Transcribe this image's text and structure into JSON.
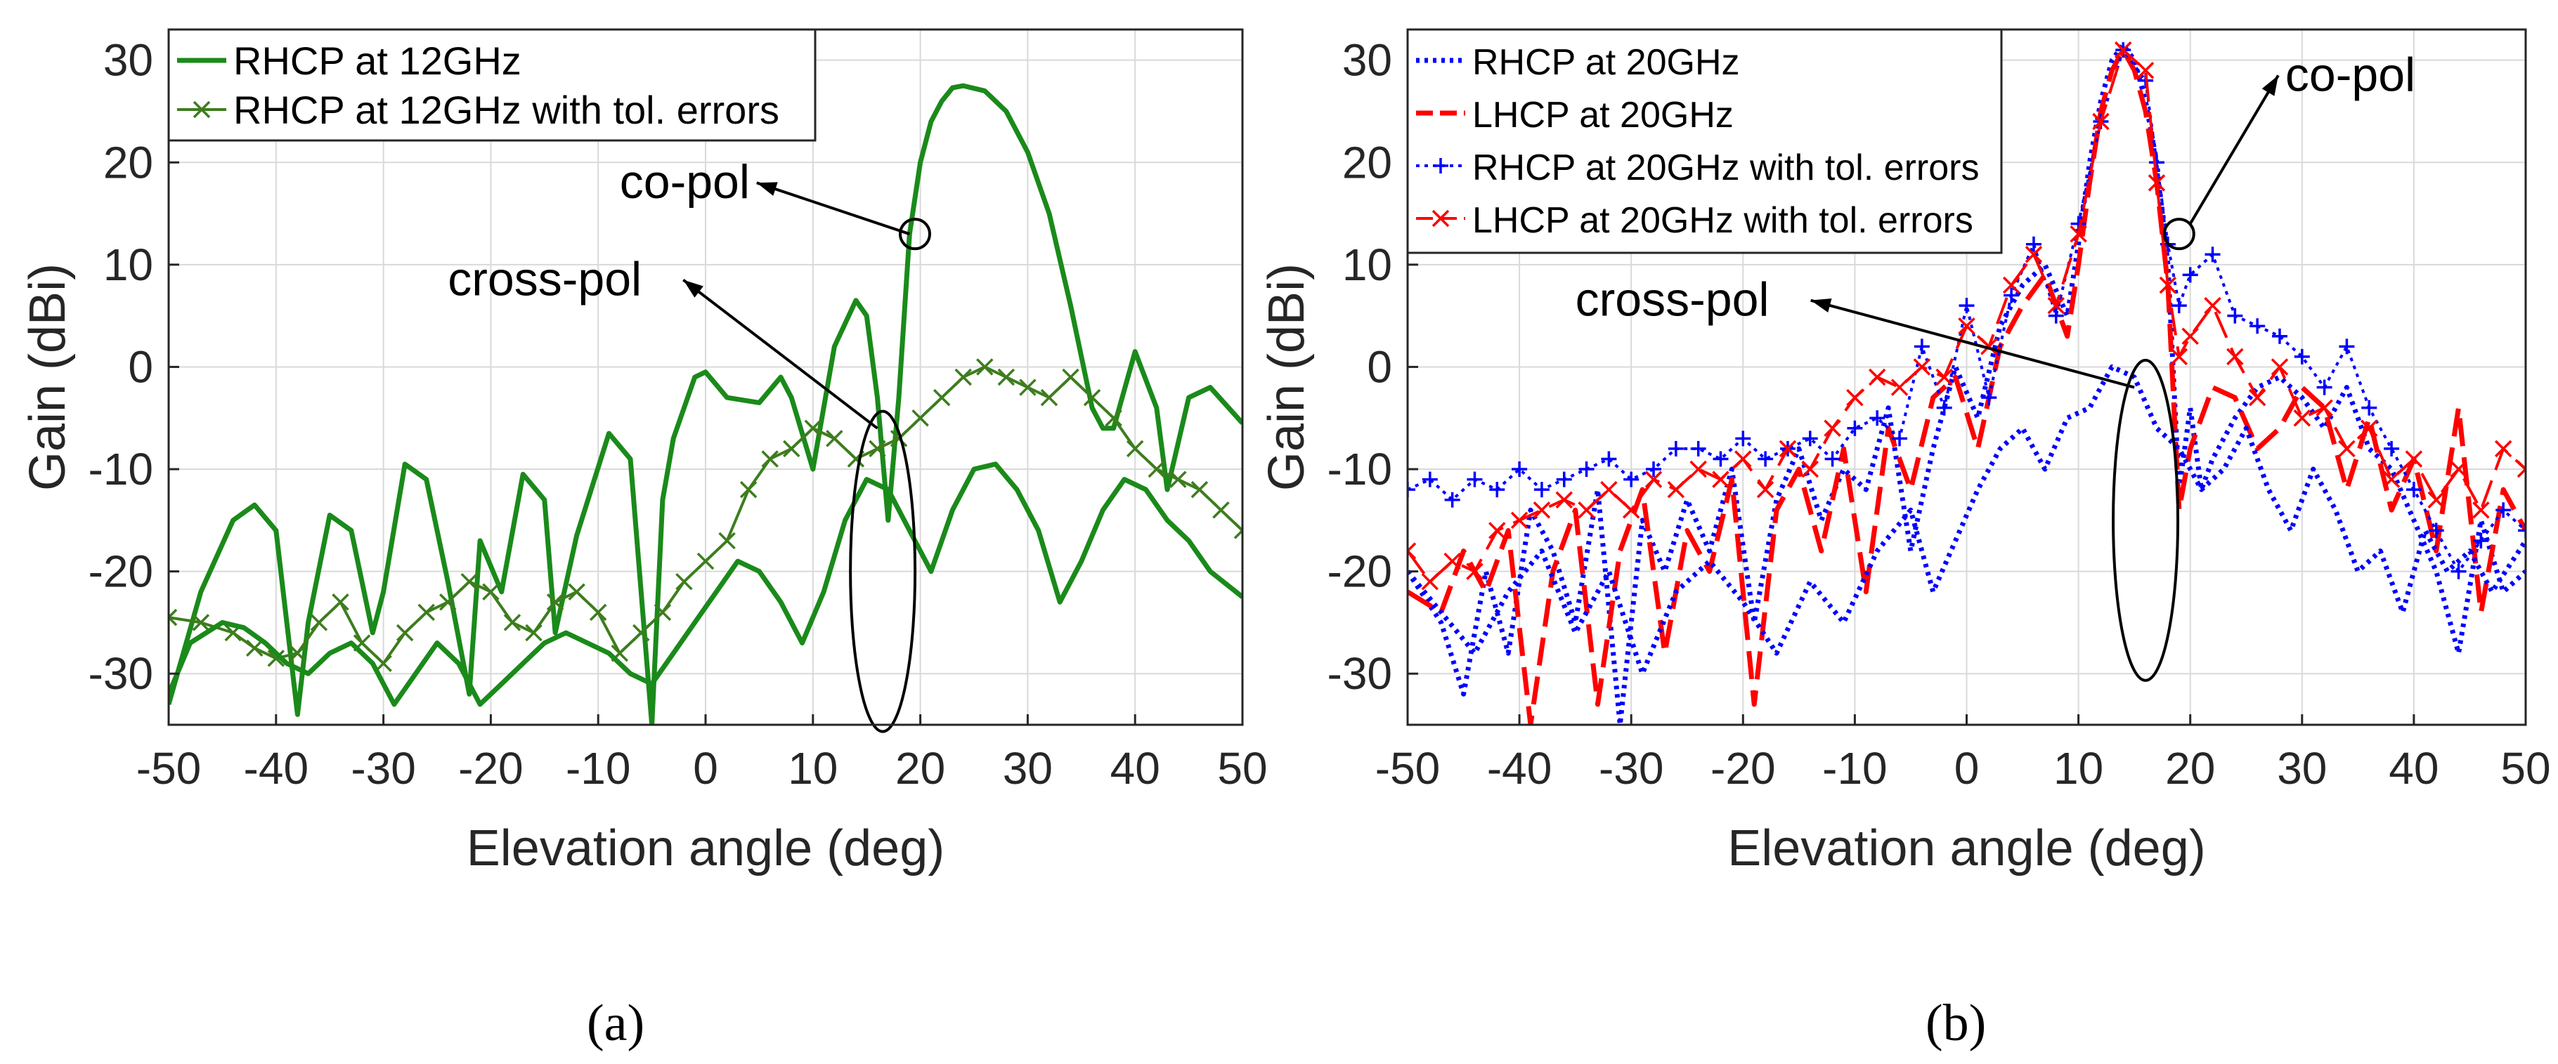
{
  "colors": {
    "green": "#1a8a1a",
    "green_markers": "#3d7d1d",
    "blue": "#0000ff",
    "red": "#ff0000",
    "grid": "#d9d9d9",
    "axis": "#262626"
  },
  "panel_labels": [
    "(a)",
    "(b)"
  ],
  "chart_data": [
    {
      "type": "line",
      "panel": "(a)",
      "xlabel": "Elevation angle (deg)",
      "ylabel": "Gain (dBi)",
      "xlim": [
        -50,
        50
      ],
      "ylim": [
        -35,
        33
      ],
      "xticks": [
        -50,
        -40,
        -30,
        -20,
        -10,
        0,
        10,
        20,
        30,
        40,
        50
      ],
      "yticks": [
        -30,
        -20,
        -10,
        0,
        10,
        20,
        30
      ],
      "grid": true,
      "legend": "top-left",
      "annotations": [
        {
          "text": "co-pol",
          "text_at": [
            -8,
            16.5
          ],
          "arrow_to": [
            19,
            13
          ],
          "marker": "circle",
          "marker_at": [
            19.5,
            13
          ]
        },
        {
          "text": "cross-pol",
          "text_at": [
            -24,
            7
          ],
          "arrow_to": [
            16,
            -6
          ],
          "marker": "ellipse",
          "marker_at": [
            16.5,
            -20
          ]
        }
      ],
      "series": [
        {
          "name": "RHCP at 12GHz",
          "style": "solid",
          "marker": "none",
          "color": "#1a8a1a",
          "x": [
            -50,
            -47,
            -44,
            -42,
            -40,
            -38,
            -37,
            -35,
            -33,
            -31,
            -30,
            -28,
            -26,
            -24,
            -22,
            -21,
            -19,
            -17,
            -15,
            -14,
            -12,
            -9,
            -7,
            -5,
            -4,
            -3,
            -1,
            0,
            2,
            5,
            7,
            8,
            10,
            12,
            14,
            15,
            16,
            17,
            18,
            19,
            20,
            21,
            22,
            23,
            24,
            26,
            28,
            30,
            32,
            34,
            36,
            37,
            38,
            40,
            42,
            43,
            45,
            47,
            50
          ],
          "y": [
            -33,
            -22,
            -15,
            -13.5,
            -16,
            -34,
            -25,
            -14.5,
            -16,
            -26,
            -22,
            -9.5,
            -11,
            -21,
            -32,
            -17,
            -22,
            -10.5,
            -13,
            -26,
            -16.5,
            -6.5,
            -9,
            -35,
            -13,
            -7,
            -1,
            -0.5,
            -3,
            -3.5,
            -1,
            -3,
            -10,
            2,
            6.5,
            5,
            -3,
            -15,
            -3,
            13,
            20,
            24,
            26,
            27.3,
            27.5,
            27,
            25,
            21,
            15,
            6,
            -4,
            -6,
            -6,
            1.5,
            -4,
            -12,
            -3,
            -2,
            -5.5
          ]
        },
        {
          "name": "RHCP at 12GHz with tol. errors",
          "style": "solid",
          "marker": "x",
          "color": "#3d7d1d",
          "x": [
            -50,
            -47,
            -44,
            -42,
            -40,
            -38,
            -36,
            -34,
            -32,
            -30,
            -28,
            -26,
            -24,
            -22,
            -20,
            -18,
            -16,
            -14,
            -12,
            -10,
            -8,
            -6,
            -4,
            -2,
            0,
            2,
            4,
            6,
            8,
            10,
            12,
            14,
            16,
            18,
            20,
            22,
            24,
            26,
            28,
            30,
            32,
            34,
            36,
            38,
            40,
            42,
            44,
            46,
            48,
            50
          ],
          "y": [
            -24.5,
            -25,
            -26,
            -27.5,
            -28.5,
            -28,
            -25,
            -23,
            -27,
            -29,
            -26,
            -24,
            -23,
            -21,
            -22,
            -25,
            -26,
            -23,
            -22,
            -24,
            -28,
            -26,
            -24,
            -21,
            -19,
            -17,
            -12,
            -9,
            -8,
            -6,
            -7,
            -9,
            -8,
            -7,
            -5,
            -3,
            -1,
            0,
            -1,
            -2,
            -3,
            -1,
            -3,
            -5,
            -8,
            -10,
            -11,
            -12,
            -14,
            -16
          ]
        },
        {
          "name": "cross-pol (RHCP at 12GHz)",
          "style": "solid",
          "marker": "none",
          "color": "#1a8a1a",
          "legend": false,
          "x": [
            -50,
            -48,
            -45,
            -43,
            -41,
            -39,
            -37,
            -35,
            -33,
            -31,
            -29,
            -27,
            -25,
            -23,
            -21,
            -19,
            -17,
            -15,
            -13,
            -11,
            -9,
            -7,
            -5,
            -3,
            -1,
            1,
            3,
            5,
            7,
            9,
            11,
            13,
            15,
            17,
            19,
            21,
            23,
            25,
            27,
            29,
            31,
            33,
            35,
            37,
            39,
            41,
            43,
            45,
            47,
            50
          ],
          "y": [
            -32,
            -27,
            -25,
            -25.5,
            -27,
            -29,
            -30,
            -28,
            -27,
            -29,
            -33,
            -30,
            -27,
            -29,
            -33,
            -31,
            -29,
            -27,
            -26,
            -27,
            -28,
            -30,
            -31,
            -28,
            -25,
            -22,
            -19,
            -20,
            -23,
            -27,
            -22,
            -15,
            -11,
            -12,
            -16,
            -20,
            -14,
            -10,
            -9.5,
            -12,
            -16,
            -23,
            -19,
            -14,
            -11,
            -12,
            -15,
            -17,
            -20,
            -22.5
          ]
        }
      ]
    },
    {
      "type": "line",
      "panel": "(b)",
      "xlabel": "Elevation angle (deg)",
      "ylabel": "Gain (dBi)",
      "xlim": [
        -50,
        50
      ],
      "ylim": [
        -35,
        33
      ],
      "xticks": [
        -50,
        -40,
        -30,
        -20,
        -10,
        0,
        10,
        20,
        30,
        40,
        50
      ],
      "yticks": [
        -30,
        -20,
        -10,
        0,
        10,
        20,
        30
      ],
      "grid": true,
      "legend": "top-left",
      "annotations": [
        {
          "text": "co-pol",
          "text_at": [
            28.5,
            27
          ],
          "arrow_to": [
            20,
            14
          ],
          "marker": "circle",
          "marker_at": [
            19,
            13
          ]
        },
        {
          "text": "cross-pol",
          "text_at": [
            -35,
            5
          ],
          "arrow_to": [
            15,
            -2
          ],
          "marker": "ellipse",
          "marker_at": [
            16,
            -15
          ]
        }
      ],
      "series": [
        {
          "name": "RHCP at 20GHz",
          "style": "dotted",
          "marker": "none",
          "color": "#0000ff",
          "x": [
            -50,
            -47,
            -45,
            -43,
            -41,
            -39,
            -37,
            -35,
            -33,
            -31,
            -29,
            -27,
            -25,
            -23,
            -21,
            -19,
            -17,
            -15,
            -13,
            -11,
            -9,
            -7,
            -5,
            -3,
            -1,
            1,
            3,
            5,
            7,
            9,
            10,
            11,
            12,
            13,
            14,
            15,
            16,
            17,
            18,
            19,
            20,
            21,
            22,
            24,
            26,
            28,
            30,
            32,
            34,
            36,
            38,
            40,
            42,
            44,
            46,
            48,
            50
          ],
          "y": [
            -20,
            -25,
            -32,
            -20,
            -28,
            -14,
            -18,
            -25,
            -12,
            -35,
            -15,
            -20,
            -13,
            -18,
            -10,
            -25,
            -13,
            -8,
            -15,
            -10,
            -12,
            -4,
            -18,
            -8,
            0,
            -5,
            4,
            8,
            10,
            5,
            12,
            20,
            26,
            30,
            31.5,
            30,
            26,
            20,
            10,
            -12,
            -4,
            -12,
            -9,
            -5,
            -2,
            -1,
            -3,
            -6,
            -2,
            -8,
            -10,
            -15,
            -20,
            -28,
            -15,
            -22,
            -20
          ]
        },
        {
          "name": "LHCP at 20GHz",
          "style": "dashed",
          "marker": "none",
          "color": "#ff0000",
          "x": [
            -50,
            -47,
            -45,
            -43,
            -41,
            -39,
            -37,
            -35,
            -33,
            -31,
            -29,
            -27,
            -25,
            -23,
            -21,
            -19,
            -17,
            -15,
            -13,
            -11,
            -9,
            -7,
            -5,
            -3,
            -1,
            1,
            3,
            5,
            7,
            9,
            10,
            11,
            12,
            13,
            14,
            15,
            16,
            17,
            18,
            19,
            20,
            21,
            22,
            24,
            26,
            28,
            30,
            32,
            34,
            36,
            38,
            40,
            42,
            44,
            46,
            48,
            50
          ],
          "y": [
            -22,
            -24,
            -18,
            -22,
            -16,
            -35,
            -20,
            -14,
            -33,
            -18,
            -12,
            -28,
            -16,
            -20,
            -11,
            -33,
            -14,
            -10,
            -18,
            -8,
            -22,
            -6,
            -12,
            -3,
            -1,
            -8,
            2,
            6,
            9,
            3,
            10,
            18,
            25,
            29,
            31,
            29,
            25,
            18,
            8,
            -14,
            -8,
            -5,
            -2,
            -3,
            -8,
            -6,
            -2,
            -4,
            -12,
            -5,
            -14,
            -9,
            -18,
            -4,
            -24,
            -12,
            -16
          ]
        },
        {
          "name": "RHCP at 20GHz with tol. errors",
          "style": "dotted",
          "marker": "+",
          "color": "#0000ff",
          "x": [
            -50,
            -48,
            -46,
            -44,
            -42,
            -40,
            -38,
            -36,
            -34,
            -32,
            -30,
            -28,
            -26,
            -24,
            -22,
            -20,
            -18,
            -16,
            -14,
            -12,
            -10,
            -8,
            -6,
            -4,
            -2,
            0,
            2,
            4,
            6,
            8,
            10,
            12,
            14,
            16,
            17,
            18,
            19,
            20,
            22,
            24,
            26,
            28,
            30,
            32,
            34,
            36,
            38,
            40,
            42,
            44,
            46,
            48,
            50
          ],
          "y": [
            -12,
            -11,
            -13,
            -11,
            -12,
            -10,
            -12,
            -11,
            -10,
            -9,
            -11,
            -10,
            -8,
            -8,
            -9,
            -7,
            -9,
            -8,
            -7,
            -9,
            -6,
            -5,
            -7,
            2,
            -4,
            6,
            -3,
            7,
            12,
            5,
            14,
            24,
            31,
            28,
            20,
            12,
            6,
            9,
            11,
            5,
            4,
            3,
            1,
            -2,
            2,
            -4,
            -8,
            -12,
            -16,
            -20,
            -17,
            -14,
            -16
          ]
        },
        {
          "name": "LHCP at 20GHz with tol. errors",
          "style": "dashed",
          "marker": "x",
          "color": "#ff0000",
          "x": [
            -50,
            -48,
            -46,
            -44,
            -42,
            -40,
            -38,
            -36,
            -34,
            -32,
            -30,
            -28,
            -26,
            -24,
            -22,
            -20,
            -18,
            -16,
            -14,
            -12,
            -10,
            -8,
            -6,
            -4,
            -2,
            0,
            2,
            4,
            6,
            8,
            10,
            12,
            14,
            16,
            17,
            18,
            19,
            20,
            22,
            24,
            26,
            28,
            30,
            32,
            34,
            36,
            38,
            40,
            42,
            44,
            46,
            48,
            50
          ],
          "y": [
            -18,
            -21,
            -19,
            -20,
            -16,
            -15,
            -14,
            -13,
            -14,
            -12,
            -14,
            -11,
            -12,
            -10,
            -11,
            -9,
            -12,
            -8,
            -10,
            -6,
            -3,
            -1,
            -2,
            0,
            -1,
            4,
            2,
            8,
            11,
            6,
            13,
            24,
            31,
            29,
            18,
            8,
            1,
            3,
            6,
            1,
            -3,
            0,
            -5,
            -4,
            -8,
            -6,
            -11,
            -9,
            -13,
            -10,
            -14,
            -8,
            -10
          ]
        },
        {
          "name": "cross-pol (20GHz)",
          "style": "dotted",
          "marker": "none",
          "color": "#0000ff",
          "legend": false,
          "x": [
            -50,
            -47,
            -44,
            -41,
            -38,
            -35,
            -32,
            -29,
            -26,
            -23,
            -20,
            -17,
            -14,
            -11,
            -8,
            -5,
            -3,
            -1,
            1,
            3,
            5,
            7,
            9,
            11,
            13,
            15,
            17,
            19,
            21,
            23,
            25,
            27,
            29,
            31,
            33,
            35,
            37,
            39,
            41,
            43,
            45,
            47,
            50
          ],
          "y": [
            -20,
            -24,
            -28,
            -22,
            -18,
            -26,
            -20,
            -30,
            -22,
            -19,
            -23,
            -28,
            -21,
            -25,
            -18,
            -14,
            -22,
            -17,
            -12,
            -8,
            -6,
            -10,
            -5,
            -4,
            0,
            -1,
            -6,
            -8,
            -12,
            -10,
            -6,
            -12,
            -16,
            -10,
            -14,
            -20,
            -18,
            -24,
            -16,
            -20,
            -18,
            -22,
            -17
          ]
        }
      ]
    }
  ]
}
